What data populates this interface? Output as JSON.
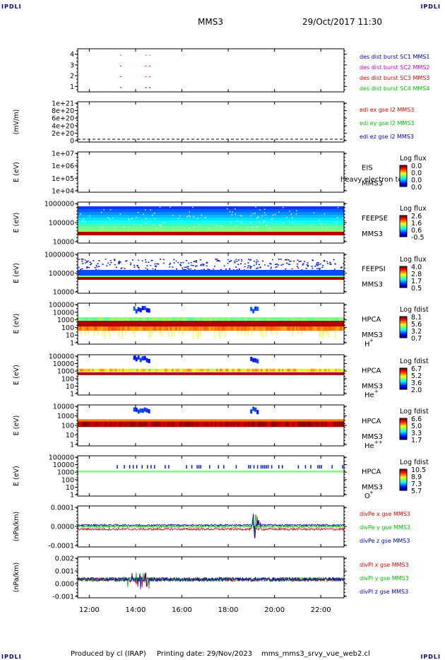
{
  "header": {
    "corner_label": "IPDLI",
    "title": "MMS3",
    "datetime": "29/Oct/2017 11:30"
  },
  "footer": {
    "produced": "Produced by cl (IRAP)",
    "printing": "Printing date: 29/Nov/2023",
    "file": "mms_mms3_srvy_vue_web2.cl"
  },
  "x_axis": {
    "range": [
      "11:30",
      "23:00"
    ],
    "ticks": [
      "12:00",
      "14:00",
      "16:00",
      "18:00",
      "20:00",
      "22:00"
    ]
  },
  "colors": {
    "blue": "#0000c8",
    "magenta": "#d000d0",
    "red": "#e00000",
    "green": "#00c000",
    "axis": "#000000"
  },
  "chart_data": [
    {
      "type": "scatter",
      "id": "burst",
      "ylabel": "",
      "yticks": [
        "4",
        "3",
        "2",
        "1"
      ],
      "legend": [
        "des dist burst SC1 MMS1",
        "des dist burst SC2 MMS2",
        "des dist burst SC3 MMS3",
        "des dist burst SC4 MMS4"
      ],
      "series": [
        {
          "name": "des dist burst SC1 MMS1",
          "color": "#0000c8",
          "level": 1,
          "times": [
            "13:20",
            "14:25",
            "14:35"
          ]
        },
        {
          "name": "des dist burst SC2 MMS2",
          "color": "#d000d0",
          "level": 2,
          "times": [
            "13:20",
            "14:25",
            "14:35"
          ]
        },
        {
          "name": "des dist burst SC3 MMS3",
          "color": "#e00000",
          "level": 3,
          "times": [
            "13:20",
            "14:25",
            "14:35"
          ]
        },
        {
          "name": "des dist burst SC4 MMS4",
          "color": "#00c000",
          "level": 4,
          "times": [
            "13:20",
            "14:25",
            "14:35"
          ]
        }
      ]
    },
    {
      "type": "line",
      "id": "edi",
      "ylabel": "(mV/m)",
      "yticks": [
        "1e+21",
        "8e+20",
        "6e+20",
        "4e+20",
        "2e+20",
        "0"
      ],
      "ylim": [
        0,
        1e+21
      ],
      "legend": [
        "edi ex gse l2 MMS3",
        "edi ey gse l2 MMS3",
        "edi ez gse l2 MMS3"
      ],
      "series": [
        {
          "name": "edi ex gse l2 MMS3",
          "value": 0
        }
      ]
    },
    {
      "type": "heatmap",
      "id": "eis",
      "ylabel": "E (eV)",
      "yticks": [
        "1e+07",
        "1e+06",
        "1e+05",
        "1e+04"
      ],
      "instrument": [
        "EIS",
        "MMS3"
      ],
      "overlay_text": "heavy electron tof",
      "colorbar": {
        "title": "Log flux",
        "ticks": [
          "0.0",
          "0.0",
          "0.0",
          "0.0"
        ]
      }
    },
    {
      "type": "heatmap",
      "id": "feepse",
      "ylabel": "E (eV)",
      "yticks": [
        "1000000",
        "100000",
        "10000"
      ],
      "instrument": [
        "FEEPSE",
        "MMS3"
      ],
      "colorbar": {
        "title": "Log flux",
        "ticks": [
          "2.6",
          "1.6",
          "0.6",
          "-0.5"
        ]
      }
    },
    {
      "type": "heatmap",
      "id": "feepsi",
      "ylabel": "E (eV)",
      "yticks": [
        "1000000",
        "100000",
        "10000"
      ],
      "instrument": [
        "FEEPSI",
        "MMS3"
      ],
      "colorbar": {
        "title": "Log flux",
        "ticks": [
          "4.0",
          "2.8",
          "1.7",
          "0.5"
        ]
      }
    },
    {
      "type": "heatmap",
      "id": "hpca_h",
      "ylabel": "E (eV)",
      "yticks": [
        "100000",
        "10000",
        "1000",
        "100",
        "10",
        "1"
      ],
      "instrument": [
        "HPCA",
        "MMS3"
      ],
      "species": "H",
      "species_charge": "+",
      "colorbar": {
        "title": "Log fdist",
        "ticks": [
          "8.1",
          "5.6",
          "3.2",
          "0.7"
        ]
      }
    },
    {
      "type": "heatmap",
      "id": "hpca_he",
      "ylabel": "E (eV)",
      "yticks": [
        "100000",
        "10000",
        "1000",
        "100",
        "10",
        "1"
      ],
      "instrument": [
        "HPCA",
        "MMS3"
      ],
      "species": "He",
      "species_charge": "+",
      "colorbar": {
        "title": "Log fdist",
        "ticks": [
          "6.7",
          "5.2",
          "3.6",
          "2.0"
        ]
      }
    },
    {
      "type": "heatmap",
      "id": "hpca_hepp",
      "ylabel": "E (eV)",
      "yticks": [
        "10000",
        "1000",
        "100",
        "10",
        "1"
      ],
      "instrument": [
        "HPCA",
        "MMS3"
      ],
      "species": "He",
      "species_charge": "++",
      "colorbar": {
        "title": "Log fdist",
        "ticks": [
          "6.6",
          "5.0",
          "3.3",
          "1.7"
        ]
      }
    },
    {
      "type": "heatmap",
      "id": "hpca_o",
      "ylabel": "E (eV)",
      "yticks": [
        "100000",
        "10000",
        "1000",
        "100",
        "10",
        "1"
      ],
      "instrument": [
        "HPCA",
        "MMS3"
      ],
      "species": "O",
      "species_charge": "+",
      "colorbar": {
        "title": "Log fdist",
        "ticks": [
          "10.5",
          "8.9",
          "7.3",
          "5.7"
        ]
      }
    },
    {
      "type": "line",
      "id": "divpe",
      "ylabel": "(nPa/km)",
      "yticks": [
        "0.0001",
        "0.0000",
        "-0.0001"
      ],
      "ylim": [
        -0.00015,
        0.00015
      ],
      "legend": [
        "divPe x gse MMS3",
        "divPe y gse MMS3",
        "divPe z gse MMS3"
      ],
      "series": [
        {
          "name": "divPe x gse MMS3",
          "color": "#e00000",
          "offset": -2e-05,
          "noise": 8e-06
        },
        {
          "name": "divPe y gse MMS3",
          "color": "#00c000",
          "offset": 0.0,
          "noise": 8e-06
        },
        {
          "name": "divPe z gse MMS3",
          "color": "#0000c8",
          "offset": 1e-05,
          "noise": 6e-06
        }
      ]
    },
    {
      "type": "line",
      "id": "divpi",
      "ylabel": "(nPa/km)",
      "yticks": [
        "0.002",
        "0.001",
        "0.000",
        "-0.001"
      ],
      "ylim": [
        -0.0018,
        0.0022
      ],
      "legend": [
        "divPI x gse MMS3",
        "divPI y gse MMS3",
        "divPI z gse MMS3"
      ],
      "series": [
        {
          "name": "divPI x gse MMS3",
          "color": "#e00000",
          "offset": 0.0,
          "noise": 0.0002
        },
        {
          "name": "divPI y gse MMS3",
          "color": "#00c000",
          "offset": 0.0,
          "noise": 0.0002
        },
        {
          "name": "divPI z gse MMS3",
          "color": "#0000c8",
          "offset": 0.0,
          "noise": 0.00018
        }
      ]
    }
  ]
}
